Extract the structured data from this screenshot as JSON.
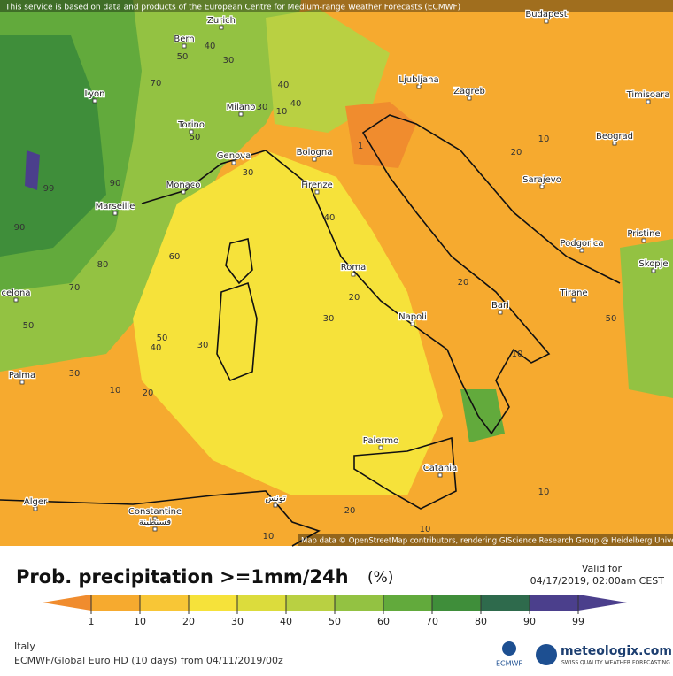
{
  "header": {
    "notice": "This service is based on data and products of the European Centre for Medium-range Weather Forecasts (ECMWF)"
  },
  "map": {
    "cities": [
      "Budapest",
      "Zurich",
      "Bern",
      "Lyon",
      "Milano",
      "Torino",
      "Ljubljana",
      "Zagreb",
      "Timisoara",
      "Beograd",
      "Genova",
      "Bologna",
      "Monaco",
      "Marseille",
      "Firenze",
      "Sarajevo",
      "Podgorica",
      "Pristine",
      "Skopje",
      "Roma",
      "Tirane",
      "Bari",
      "Napoli",
      "celona",
      "Palma",
      "Palermo",
      "Catania",
      "Alger",
      "Constantine",
      "قسنطينة",
      "تونس"
    ],
    "contour_labels": [
      40,
      50,
      30,
      70,
      40,
      30,
      10,
      40,
      50,
      30,
      90,
      99,
      90,
      80,
      60,
      70,
      40,
      20,
      30,
      50,
      40,
      30,
      50,
      30,
      10,
      20,
      1,
      20,
      10,
      20,
      10,
      50,
      10,
      20,
      10,
      10
    ],
    "attribution": "Map data © OpenStreetMap contributors, rendering GIScience Research Group @ Heidelberg University"
  },
  "legend": {
    "title": "Prob. precipitation >=1mm/24h",
    "unit": "(%)",
    "valid_label": "Valid for",
    "valid_time": "04/17/2019, 02:00am CEST",
    "ticks": [
      1,
      10,
      20,
      30,
      40,
      50,
      60,
      70,
      80,
      90,
      99
    ],
    "colors": [
      "#f08c2e",
      "#f6aa2f",
      "#f8c636",
      "#f6e23a",
      "#dcdc3c",
      "#b9d042",
      "#93c242",
      "#62aa3c",
      "#3f8e3a",
      "#2e6a4c",
      "#4b3f8c"
    ]
  },
  "footer": {
    "region": "Italy",
    "model": "ECMWF/Global Euro HD (10 days) from 04/11/2019/00z",
    "ecmwf": "ECMWF",
    "brand": "meteologix.com",
    "tagline": "SWISS QUALITY WEATHER FORECASTING"
  }
}
